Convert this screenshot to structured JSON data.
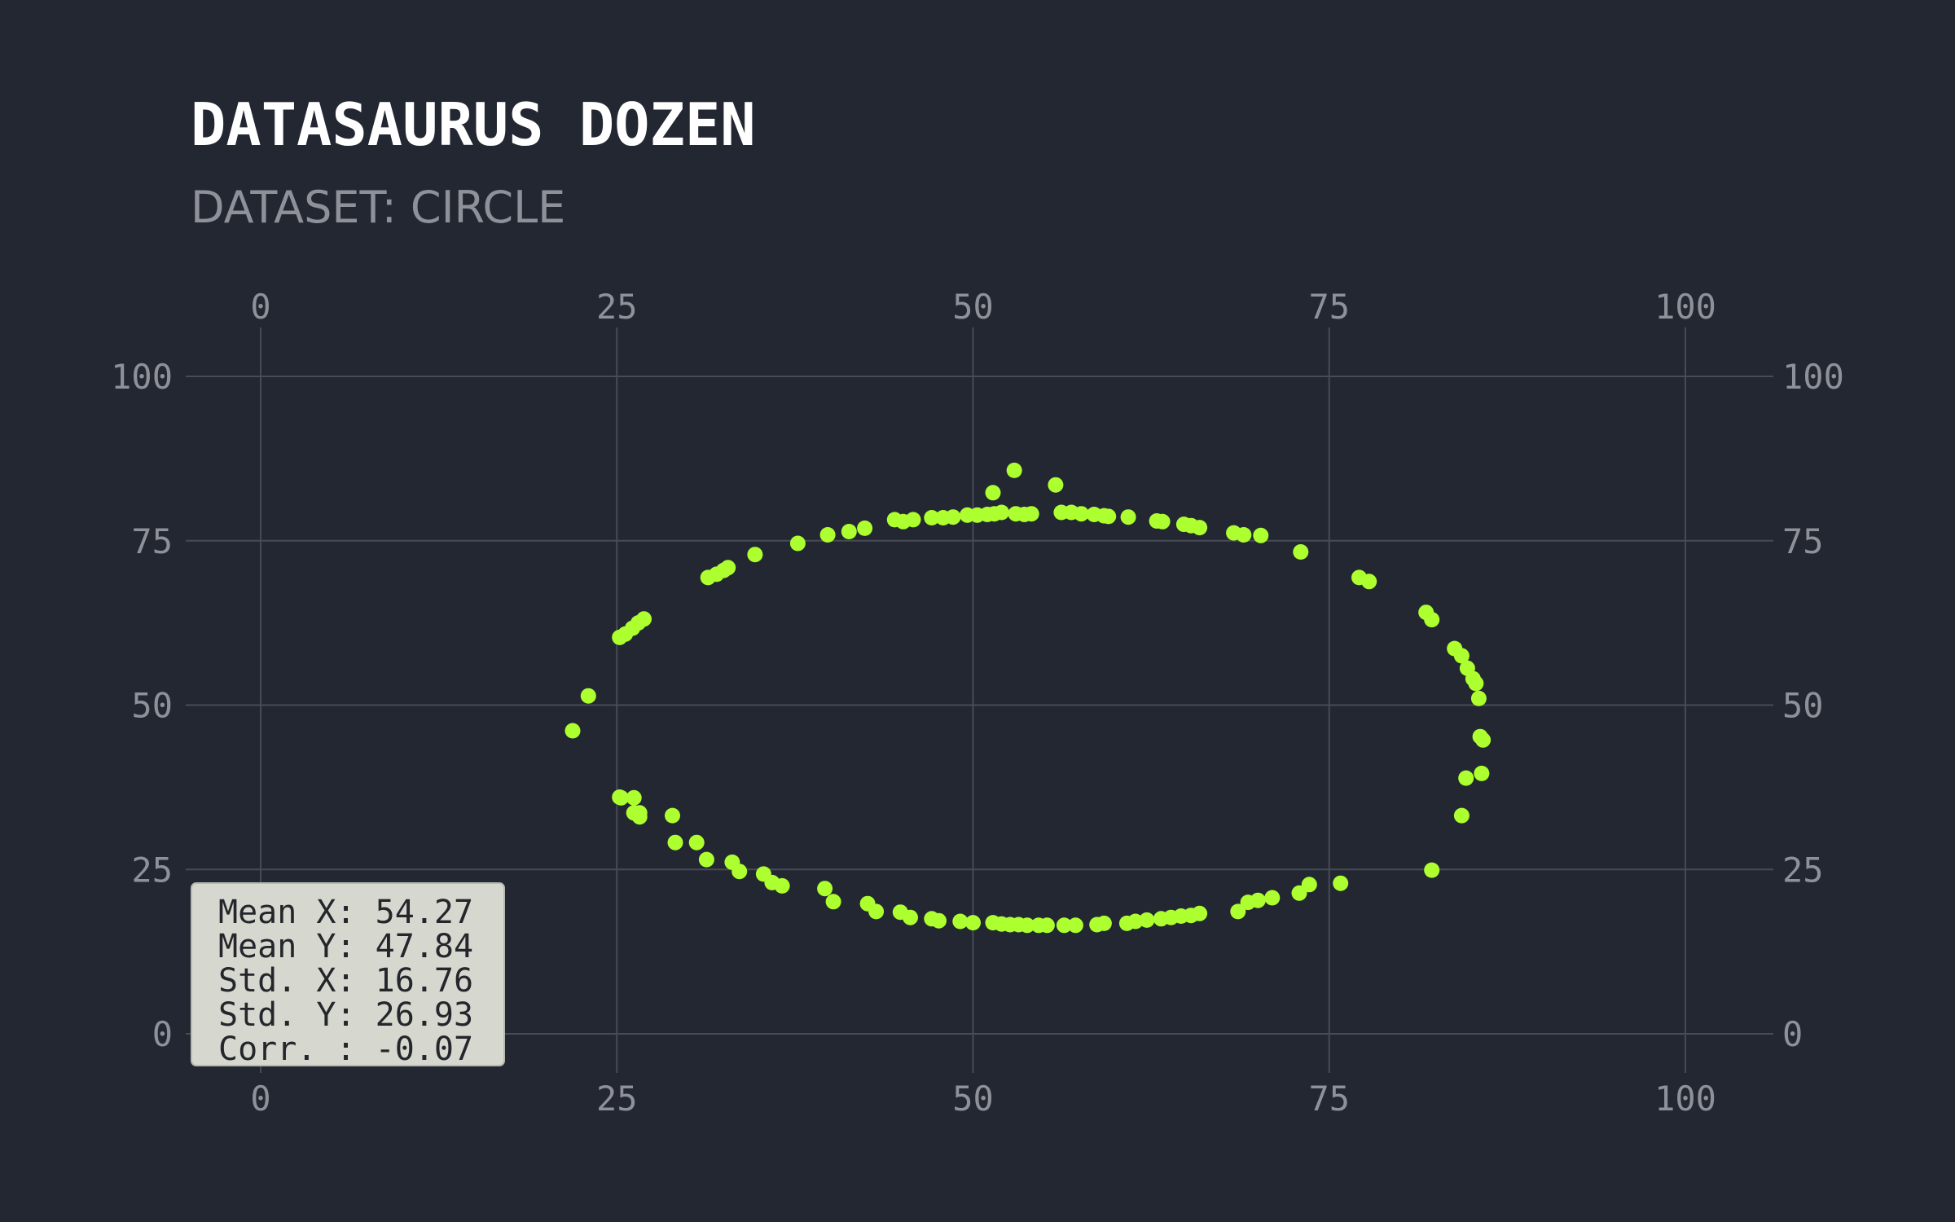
{
  "title": "DATASAURUS DOZEN",
  "subtitle": "DATASET: CIRCLE",
  "stats": [
    "Mean X: 54.27",
    "Mean Y: 47.84",
    "Std. X: 16.76",
    "Std. Y: 26.93",
    "Corr. : -0.07"
  ],
  "colors": {
    "background": "#232731",
    "point": "#adff2f",
    "grid": "#474b55"
  },
  "chart_data": {
    "type": "scatter",
    "title": "DATASAURUS DOZEN",
    "subtitle": "DATASET: CIRCLE",
    "xlabel": "",
    "ylabel": "",
    "xlim": [
      -4.5,
      106.5
    ],
    "ylim": [
      -10,
      105
    ],
    "grid": true,
    "x_ticks": [
      "0",
      "25",
      "50",
      "75",
      "100"
    ],
    "y_ticks": [
      "0",
      "25",
      "50",
      "75",
      "100"
    ],
    "x_tick_values": [
      0,
      25,
      50,
      75,
      100
    ],
    "y_tick_values": [
      0,
      25,
      50,
      75,
      100
    ],
    "axes_labeled": [
      "top",
      "bottom",
      "left",
      "right"
    ],
    "series": [
      {
        "point_color": "#adff2f",
        "x": [
          21.9,
          23.0,
          25.2,
          25.6,
          26.1,
          26.5,
          26.9,
          25.3,
          26.2,
          26.6,
          29.1,
          31.3,
          31.4,
          32.0,
          32.5,
          32.8,
          34.7,
          37.7,
          39.8,
          41.3,
          42.4,
          44.5,
          45.1,
          45.8,
          47.1,
          47.9,
          48.6,
          49.6,
          50.3,
          51.0,
          51.5,
          52.0,
          53.0,
          53.6,
          54.1,
          51.4,
          52.9,
          55.8,
          56.2,
          56.9,
          57.6,
          58.5,
          59.2,
          59.5,
          60.9,
          62.9,
          63.3,
          64.8,
          65.3,
          65.9,
          68.3,
          69.0,
          70.2,
          73.0,
          77.1,
          77.8,
          81.8,
          82.2,
          83.8,
          84.3,
          84.7,
          85.1,
          85.3,
          85.5,
          85.6,
          85.8,
          85.7,
          84.6,
          84.3,
          82.2,
          75.8,
          73.6,
          72.9,
          71.0,
          70.0,
          69.3,
          68.6,
          65.9,
          65.3,
          64.6,
          63.9,
          63.2,
          62.2,
          61.4,
          60.8,
          59.2,
          58.7,
          57.2,
          56.4,
          55.2,
          54.6,
          53.8,
          53.2,
          52.6,
          52.0,
          51.4,
          50.0,
          49.1,
          47.6,
          47.1,
          45.6,
          44.9,
          43.2,
          42.6,
          40.2,
          39.6,
          36.6,
          35.9,
          35.3,
          33.6,
          33.1,
          30.6,
          28.9,
          26.6,
          26.2,
          25.2
        ],
        "y": [
          46.1,
          51.4,
          60.3,
          60.8,
          61.7,
          62.5,
          63.1,
          35.9,
          33.6,
          33.0,
          29.1,
          26.5,
          69.4,
          69.9,
          70.5,
          70.9,
          72.9,
          74.6,
          75.9,
          76.4,
          76.9,
          78.2,
          77.9,
          78.2,
          78.5,
          78.5,
          78.6,
          78.9,
          78.9,
          79.0,
          79.1,
          79.3,
          79.1,
          79.0,
          79.1,
          82.3,
          85.7,
          83.5,
          79.3,
          79.3,
          79.1,
          79.0,
          78.8,
          78.7,
          78.6,
          78.0,
          77.9,
          77.5,
          77.3,
          77.0,
          76.2,
          75.9,
          75.8,
          73.3,
          69.4,
          68.8,
          64.1,
          63.0,
          58.6,
          57.5,
          55.6,
          54.0,
          53.3,
          51.0,
          45.2,
          44.7,
          39.6,
          38.9,
          33.2,
          24.9,
          22.9,
          22.7,
          21.4,
          20.7,
          20.3,
          20.0,
          18.6,
          18.3,
          18.0,
          17.9,
          17.7,
          17.5,
          17.3,
          17.1,
          16.8,
          16.8,
          16.6,
          16.5,
          16.5,
          16.5,
          16.5,
          16.5,
          16.6,
          16.6,
          16.7,
          16.9,
          16.9,
          17.1,
          17.2,
          17.5,
          17.7,
          18.5,
          18.6,
          19.8,
          20.1,
          22.1,
          22.5,
          23.0,
          24.3,
          24.7,
          26.1,
          29.1,
          33.2,
          33.6,
          35.9,
          36.0
        ]
      }
    ]
  }
}
